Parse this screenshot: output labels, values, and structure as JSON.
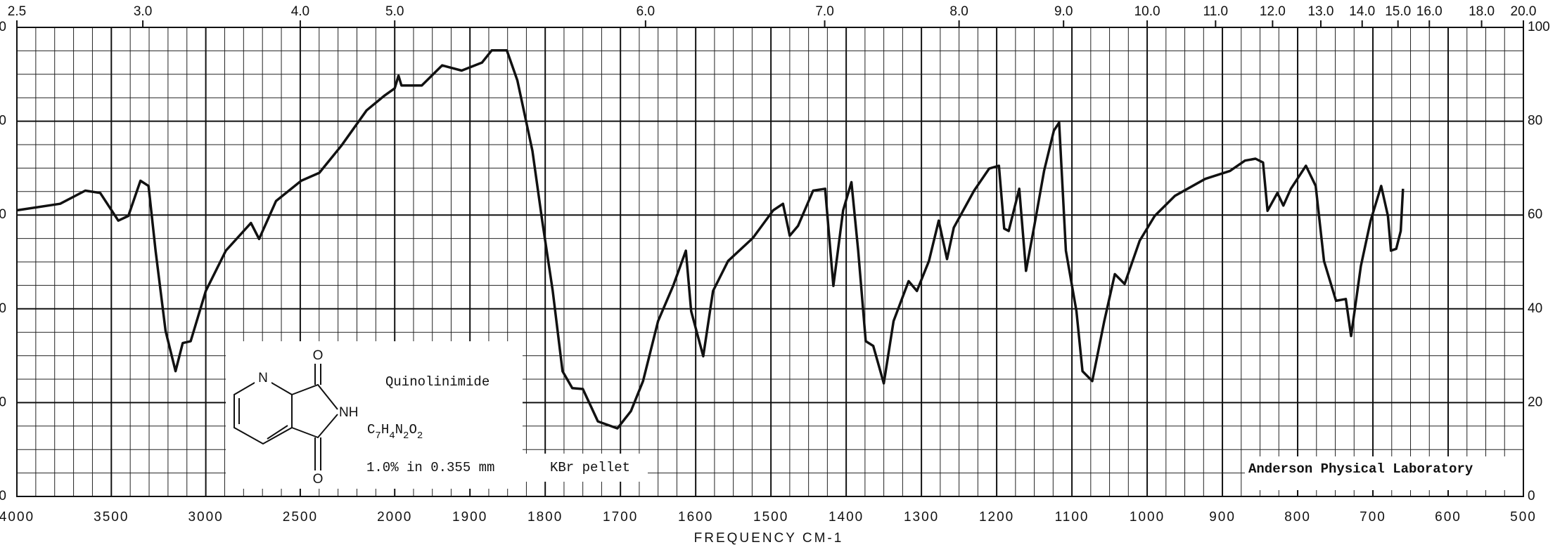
{
  "chart_data": {
    "type": "line",
    "xlabel": "FREQUENCY CM-1",
    "xlim": [
      4000,
      500
    ],
    "ylim": [
      0,
      100
    ],
    "xticks": [
      4000,
      3500,
      3000,
      2500,
      2000,
      1900,
      1800,
      1700,
      1600,
      1500,
      1400,
      1300,
      1200,
      1100,
      1000,
      900,
      800,
      700,
      600,
      500
    ],
    "x2ticks": [
      {
        "value": 2.5,
        "label": "2.5"
      },
      {
        "value": 3,
        "label": "3.0"
      },
      {
        "value": 4,
        "label": "4.0"
      },
      {
        "value": 5,
        "label": "5.0"
      },
      {
        "value": 6,
        "label": "6.0"
      },
      {
        "value": 7,
        "label": "7.0"
      },
      {
        "value": 8,
        "label": "8.0"
      },
      {
        "value": 9,
        "label": "9.0"
      },
      {
        "value": 10,
        "label": "10.0"
      },
      {
        "value": 11,
        "label": "11.0"
      },
      {
        "value": 12,
        "label": "12.0"
      },
      {
        "value": 13,
        "label": "13.0"
      },
      {
        "value": 14,
        "label": "14.0"
      },
      {
        "value": 15,
        "label": "15.0"
      },
      {
        "value": 16,
        "label": "16.0"
      },
      {
        "value": 18,
        "label": "18.0"
      },
      {
        "value": 20,
        "label": "20.0"
      }
    ],
    "yticks": [
      0,
      20,
      40,
      60,
      80,
      100
    ],
    "grid": true,
    "x": [
      4000,
      3771,
      3638,
      3559,
      3463,
      3410,
      3346,
      3303,
      3266,
      3213,
      3160,
      3122,
      3080,
      3000,
      2894,
      2761,
      2718,
      2628,
      2495,
      2399,
      2282,
      2149,
      2053,
      2000,
      1995,
      1991,
      1964,
      1937,
      1911,
      1884,
      1871,
      1851,
      1837,
      1817,
      1804,
      1790,
      1777,
      1764,
      1750,
      1730,
      1704,
      1686,
      1670,
      1650,
      1630,
      1613,
      1606,
      1590,
      1577,
      1557,
      1524,
      1497,
      1484,
      1475,
      1464,
      1444,
      1428,
      1417,
      1404,
      1393,
      1384,
      1374,
      1364,
      1350,
      1337,
      1317,
      1306,
      1290,
      1277,
      1266,
      1257,
      1230,
      1210,
      1197,
      1190,
      1184,
      1170,
      1161,
      1150,
      1137,
      1124,
      1117,
      1108,
      1094,
      1086,
      1073,
      1057,
      1043,
      1030,
      1010,
      990,
      963,
      923,
      890,
      870,
      856,
      846,
      840,
      827,
      819,
      809,
      789,
      776,
      765,
      749,
      736,
      729,
      716,
      703,
      689,
      680,
      676,
      669,
      663,
      660
    ],
    "series": [
      {
        "color": "#111111",
        "values": [
          61,
          62.4,
          65.2,
          64.7,
          58.8,
          59.8,
          67.3,
          66.2,
          52.4,
          35.3,
          26.7,
          32.7,
          33.1,
          43.8,
          52.4,
          58.3,
          54.9,
          63,
          67.3,
          69,
          74.8,
          82.3,
          85.5,
          87,
          89.7,
          87.6,
          87.6,
          91.9,
          90.8,
          92.5,
          95.1,
          95.1,
          88.7,
          73.7,
          58.8,
          43.8,
          26.7,
          23.1,
          22.9,
          16,
          14.5,
          18.2,
          24.6,
          37.4,
          44.9,
          52.4,
          39.5,
          29.9,
          43.8,
          50.2,
          55.1,
          61,
          62.4,
          55.6,
          57.7,
          65.2,
          65.6,
          44.9,
          61,
          67,
          52.4,
          33.1,
          32.1,
          24.1,
          37.4,
          45.9,
          43.8,
          50.2,
          58.8,
          50.6,
          57.3,
          65.2,
          69.9,
          70.5,
          57.1,
          56.6,
          65.6,
          48.1,
          57.7,
          69.4,
          78,
          79.7,
          52.4,
          39.5,
          26.7,
          24.6,
          37.4,
          47.4,
          45.3,
          54.5,
          59.8,
          64.1,
          67.7,
          69.4,
          71.6,
          72,
          71.2,
          60.9,
          64.7,
          62,
          65.6,
          70.5,
          66.2,
          50.2,
          41.7,
          42.1,
          34.2,
          49.1,
          58.8,
          66.2,
          59.8,
          52.4,
          52.8,
          56.6,
          65.6
        ]
      }
    ],
    "annotations": {
      "compound": "Quinolinimide",
      "formula": "C7H4N2O2",
      "sample": "1.0% in 0.355 mm",
      "medium": "KBr pellet",
      "lab": "Anderson Physical Laboratory",
      "atoms": [
        "N",
        "O",
        "NH",
        "O"
      ]
    }
  }
}
